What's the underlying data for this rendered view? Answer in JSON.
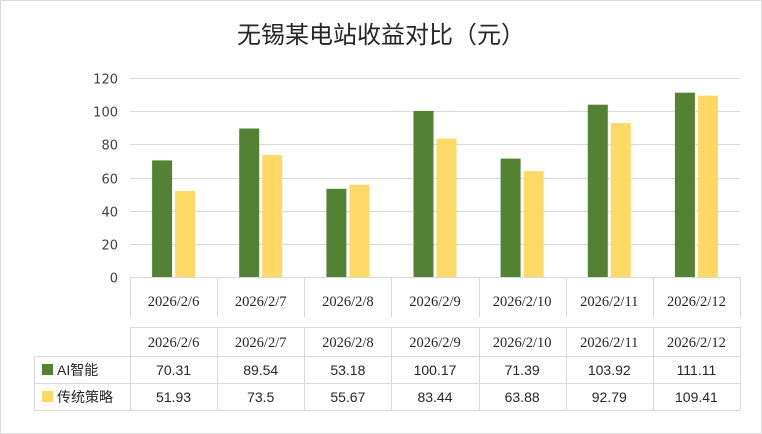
{
  "chart_data": {
    "type": "bar",
    "title": "无锡某电站收益对比（元）",
    "categories": [
      "2026/2/6",
      "2026/2/7",
      "2026/2/8",
      "2026/2/9",
      "2026/2/10",
      "2026/2/11",
      "2026/2/12"
    ],
    "series": [
      {
        "name": "AI智能",
        "color": "#548235",
        "values": [
          70.31,
          89.54,
          53.18,
          100.17,
          71.39,
          103.92,
          111.11
        ],
        "labels": [
          "70.31",
          "89.54",
          "53.18",
          "100.17",
          "71.39",
          "103.92",
          "111.11"
        ]
      },
      {
        "name": "传统策略",
        "color": "#ffd966",
        "values": [
          51.93,
          73.5,
          55.67,
          83.44,
          63.88,
          92.79,
          109.41
        ],
        "labels": [
          "51.93",
          "73.5",
          "55.67",
          "83.44",
          "63.88",
          "92.79",
          "109.41"
        ]
      }
    ],
    "ylim": [
      0,
      120
    ],
    "yticks": [
      "0",
      "20",
      "40",
      "60",
      "80",
      "100",
      "120"
    ],
    "grid": true,
    "legend": "data-table",
    "xlabel": "",
    "ylabel": ""
  }
}
